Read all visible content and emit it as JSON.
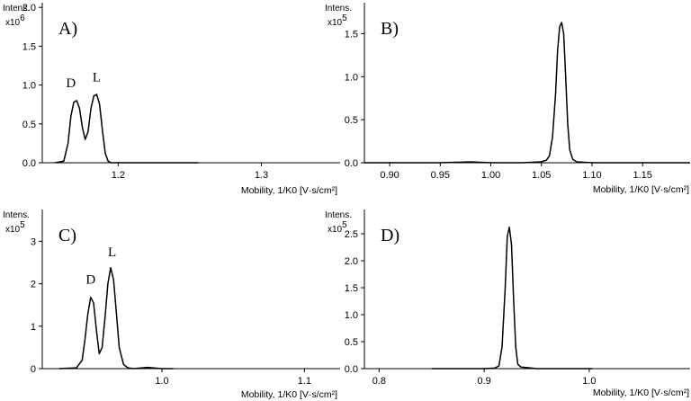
{
  "chart_data": [
    {
      "type": "line",
      "panel_label": "A)",
      "intensity_label": "Intens.",
      "scale_base": "x10",
      "scale_exp": "6",
      "xlabel": "Mobility, 1/K0 [V·s/cm²]",
      "xlim": [
        1.147,
        1.355
      ],
      "ylim": [
        0,
        2.06
      ],
      "xticks": [
        1.2,
        1.3
      ],
      "xtick_labels": [
        "1.2",
        "1.3"
      ],
      "yticks": [
        0,
        0.5,
        1.0,
        1.5,
        2.0
      ],
      "ytick_labels": [
        "0.0",
        "0.5",
        "1.0",
        "1.5",
        "2.0"
      ],
      "series": [
        {
          "x": [
            1.156,
            1.162,
            1.165,
            1.167,
            1.169,
            1.171,
            1.173,
            1.175,
            1.177,
            1.179,
            1.181,
            1.183,
            1.185,
            1.187,
            1.189,
            1.191,
            1.193,
            1.195,
            1.2,
            1.22,
            1.24,
            1.256
          ],
          "y": [
            0.0,
            0.02,
            0.25,
            0.6,
            0.78,
            0.8,
            0.7,
            0.45,
            0.3,
            0.4,
            0.7,
            0.86,
            0.88,
            0.75,
            0.42,
            0.12,
            0.02,
            0.0,
            0.0,
            0.0,
            0.0,
            0.0
          ]
        }
      ],
      "annotations": [
        {
          "text": "D",
          "x": 1.167,
          "y": 0.97
        },
        {
          "text": "L",
          "x": 1.185,
          "y": 1.05
        }
      ]
    },
    {
      "type": "line",
      "panel_label": "B)",
      "intensity_label": "Intens.",
      "scale_base": "x10",
      "scale_exp": "5",
      "xlabel": "Mobility, 1/K0 [V·s/cm²]",
      "xlim": [
        0.875,
        1.197
      ],
      "ylim": [
        0,
        1.86
      ],
      "xticks": [
        0.9,
        0.95,
        1.0,
        1.05,
        1.1,
        1.15
      ],
      "xtick_labels": [
        "0.90",
        "0.95",
        "1.00",
        "1.05",
        "1.10",
        "1.15"
      ],
      "yticks": [
        0,
        0.5,
        1.0,
        1.5
      ],
      "ytick_labels": [
        "0.0",
        "0.5",
        "1.0",
        "1.5"
      ],
      "series": [
        {
          "x": [
            0.875,
            0.9,
            0.95,
            0.98,
            1.0,
            1.03,
            1.05,
            1.055,
            1.058,
            1.061,
            1.064,
            1.066,
            1.068,
            1.07,
            1.072,
            1.074,
            1.076,
            1.078,
            1.081,
            1.085,
            1.1,
            1.15,
            1.197
          ],
          "y": [
            0.0,
            0.0,
            0.0,
            0.01,
            0.0,
            0.0,
            0.01,
            0.03,
            0.08,
            0.3,
            0.8,
            1.3,
            1.58,
            1.63,
            1.5,
            1.0,
            0.45,
            0.15,
            0.04,
            0.01,
            0.0,
            0.0,
            0.0
          ]
        }
      ],
      "annotations": []
    },
    {
      "type": "line",
      "panel_label": "C)",
      "intensity_label": "Intens.",
      "scale_base": "x10",
      "scale_exp": "5",
      "xlabel": "Mobility, 1/K0 [V·s/cm²]",
      "xlim": [
        0.916,
        1.125
      ],
      "ylim": [
        0,
        3.75
      ],
      "xticks": [
        1.0,
        1.1
      ],
      "xtick_labels": [
        "1.0",
        "1.1"
      ],
      "yticks": [
        0,
        1,
        2,
        3
      ],
      "ytick_labels": [
        "0",
        "1",
        "2",
        "3"
      ],
      "series": [
        {
          "x": [
            0.928,
            0.94,
            0.944,
            0.946,
            0.948,
            0.95,
            0.952,
            0.954,
            0.956,
            0.958,
            0.96,
            0.962,
            0.964,
            0.966,
            0.968,
            0.97,
            0.973,
            0.976,
            0.98,
            0.99,
            1.0,
            1.008
          ],
          "y": [
            0.0,
            0.02,
            0.2,
            0.7,
            1.3,
            1.68,
            1.55,
            0.9,
            0.35,
            0.5,
            1.2,
            2.0,
            2.38,
            2.1,
            1.3,
            0.5,
            0.1,
            0.02,
            0.0,
            0.03,
            0.0,
            0.0
          ]
        }
      ],
      "annotations": [
        {
          "text": "D",
          "x": 0.95,
          "y": 2.0
        },
        {
          "text": "L",
          "x": 0.965,
          "y": 2.65
        }
      ]
    },
    {
      "type": "line",
      "panel_label": "D)",
      "intensity_label": "Intens.",
      "scale_base": "x10",
      "scale_exp": "5",
      "xlabel": "Mobility, 1/K0 [V·s/cm²]",
      "xlim": [
        0.786,
        1.096
      ],
      "ylim": [
        0,
        2.95
      ],
      "xticks": [
        0.8,
        0.9,
        1.0
      ],
      "xtick_labels": [
        "0.8",
        "0.9",
        "1.0"
      ],
      "yticks": [
        0,
        0.5,
        1.0,
        1.5,
        2.0,
        2.5
      ],
      "ytick_labels": [
        "0.0",
        "0.5",
        "1.0",
        "1.5",
        "2.0",
        "2.5"
      ],
      "series": [
        {
          "x": [
            0.85,
            0.9,
            0.91,
            0.914,
            0.917,
            0.92,
            0.922,
            0.924,
            0.926,
            0.928,
            0.93,
            0.932,
            0.935,
            0.94,
            0.95,
            1.0,
            1.003
          ],
          "y": [
            0.0,
            0.0,
            0.01,
            0.05,
            0.4,
            1.5,
            2.45,
            2.62,
            2.3,
            1.3,
            0.4,
            0.08,
            0.03,
            0.02,
            0.0,
            0.0,
            0.0
          ]
        }
      ],
      "annotations": []
    }
  ]
}
